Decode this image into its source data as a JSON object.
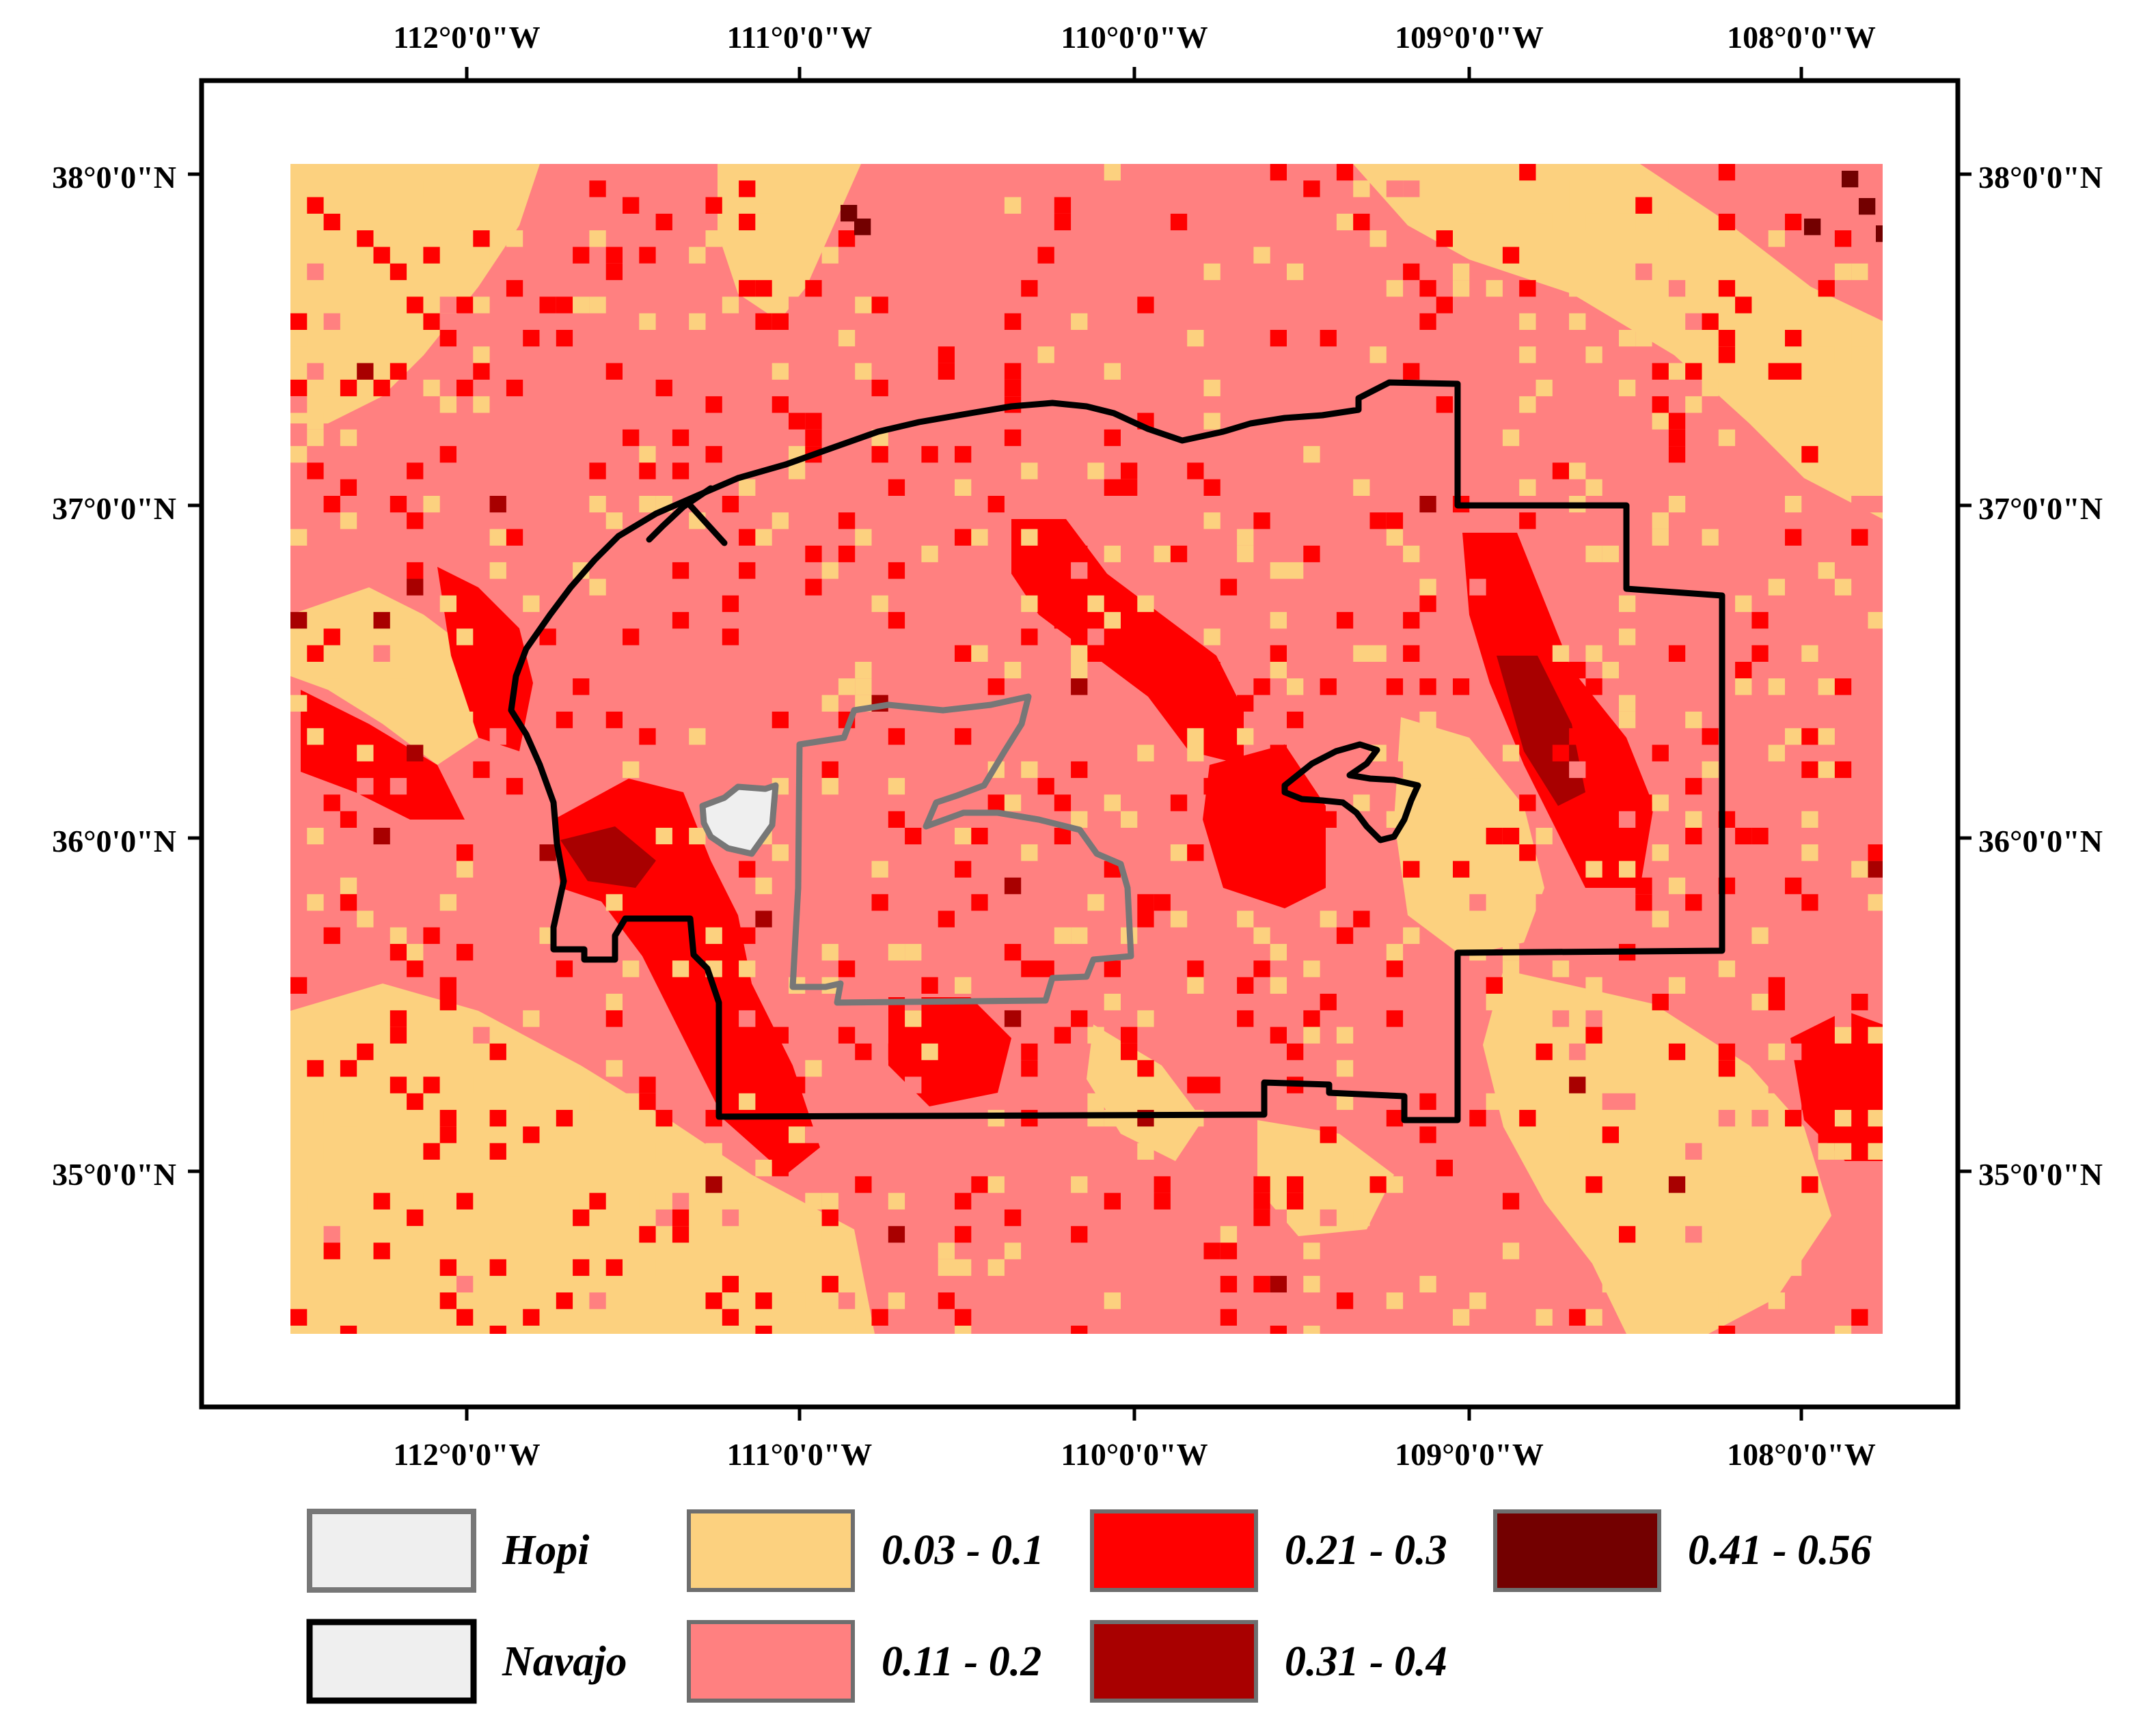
{
  "map": {
    "colors": {
      "class1": "#FCD17F",
      "class2": "#FF8080",
      "class3": "#FF0000",
      "class4": "#A80000",
      "class5": "#730000",
      "hopi_fill": "#EFEFEF",
      "hopi_outline": "#777777",
      "navajo_outline": "#000000"
    },
    "lon_labels": [
      "112°0'0\"W",
      "111°0'0\"W",
      "110°0'0\"W",
      "109°0'0\"W",
      "108°0'0\"W"
    ],
    "lat_labels": [
      "38°0'0\"N",
      "37°0'0\"N",
      "36°0'0\"N",
      "35°0'0\"N"
    ]
  },
  "legend": {
    "hopi": "Hopi",
    "navajo": "Navajo",
    "class1": "0.03 - 0.1",
    "class2": "0.11 - 0.2",
    "class3": "0.21 - 0.3",
    "class4": "0.31 - 0.4",
    "class5": "0.41 - 0.56"
  }
}
